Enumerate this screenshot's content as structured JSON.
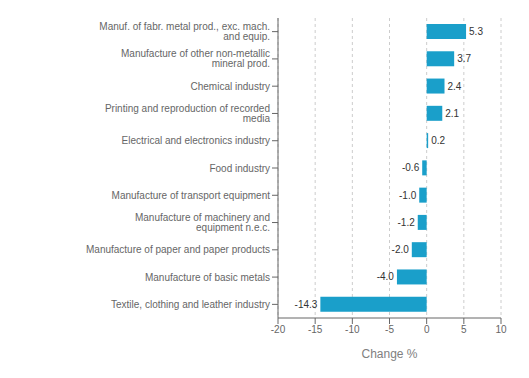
{
  "chart_data": {
    "type": "bar",
    "orientation": "horizontal",
    "categories": [
      "Textile, clothing and leather industry",
      "Manufacture of basic metals",
      "Manufacture of paper and paper products",
      "Manufacture of machinery and equipment n.e.c.",
      "Manufacture of transport equipment",
      "Food industry",
      "Electrical and electronics industry",
      "Printing and reproduction of recorded media",
      "Chemical industry",
      "Manufacture of other non-metallic mineral prod.",
      "Manuf. of fabr. metal prod., exc. mach. and equip."
    ],
    "values": [
      -14.3,
      -4.0,
      -2.0,
      -1.2,
      -1.0,
      -0.6,
      0.2,
      2.1,
      2.4,
      3.7,
      5.3
    ],
    "value_labels": [
      "-14.3",
      "-4.0",
      "-2.0",
      "-1.2",
      "-1.0",
      "-0.6",
      "0.2",
      "2.1",
      "2.4",
      "3.7",
      "5.3"
    ],
    "color": "#1a9fca",
    "xlabel": "Change %",
    "xlim": [
      -20,
      10
    ],
    "xticks": [
      -20,
      -15,
      -10,
      -5,
      0,
      5,
      10
    ],
    "grid": true,
    "data_labels": true
  }
}
